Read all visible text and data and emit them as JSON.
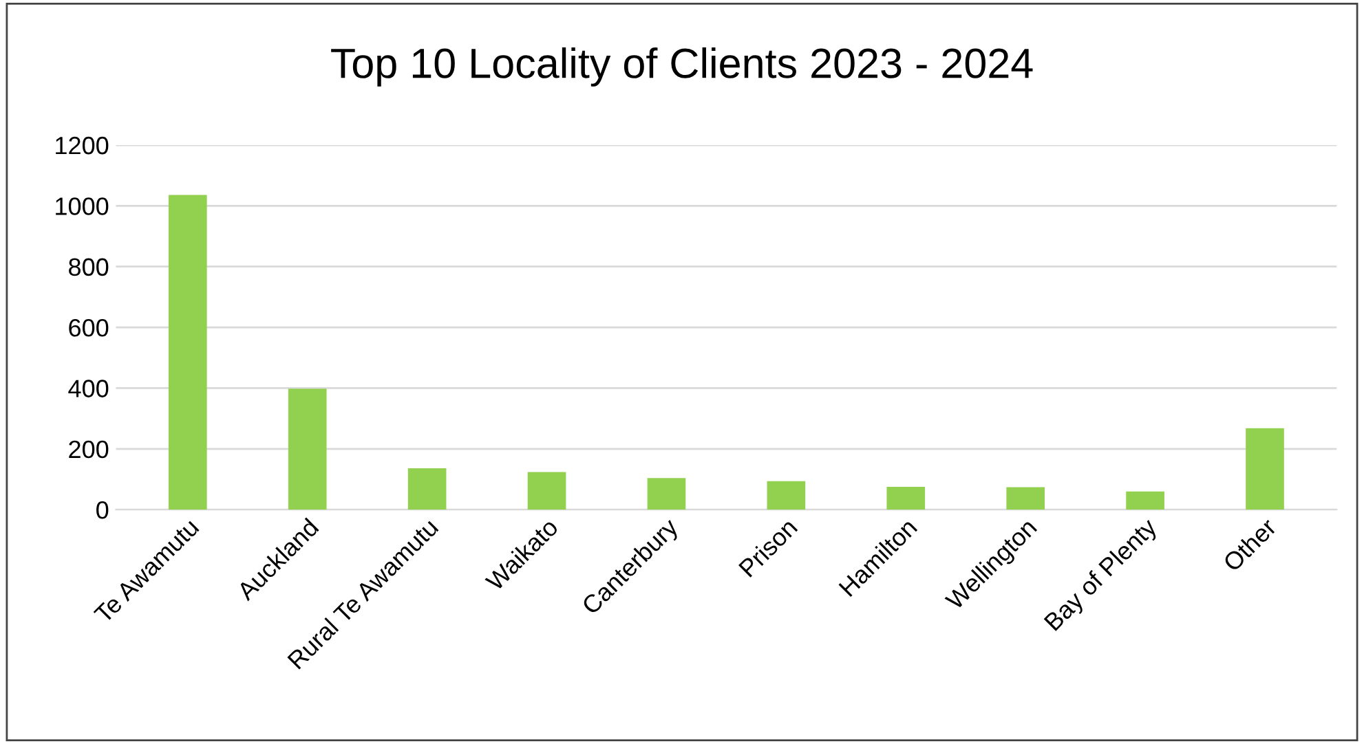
{
  "chart_data": {
    "type": "bar",
    "title": "Top 10 Locality of Clients 2023 - 2024",
    "categories": [
      "Te Awamutu",
      "Auckland",
      "Rural Te Awamutu",
      "Waikato",
      "Canterbury",
      "Prison",
      "Hamilton",
      "Wellington",
      "Bay of Plenty",
      "Other"
    ],
    "values": [
      1036,
      398,
      136,
      124,
      104,
      94,
      75,
      74,
      60,
      268
    ],
    "color": "#92d050",
    "ylim": [
      0,
      1200
    ],
    "yticks": [
      0,
      200,
      400,
      600,
      800,
      1000,
      1200
    ],
    "grid": "y"
  }
}
